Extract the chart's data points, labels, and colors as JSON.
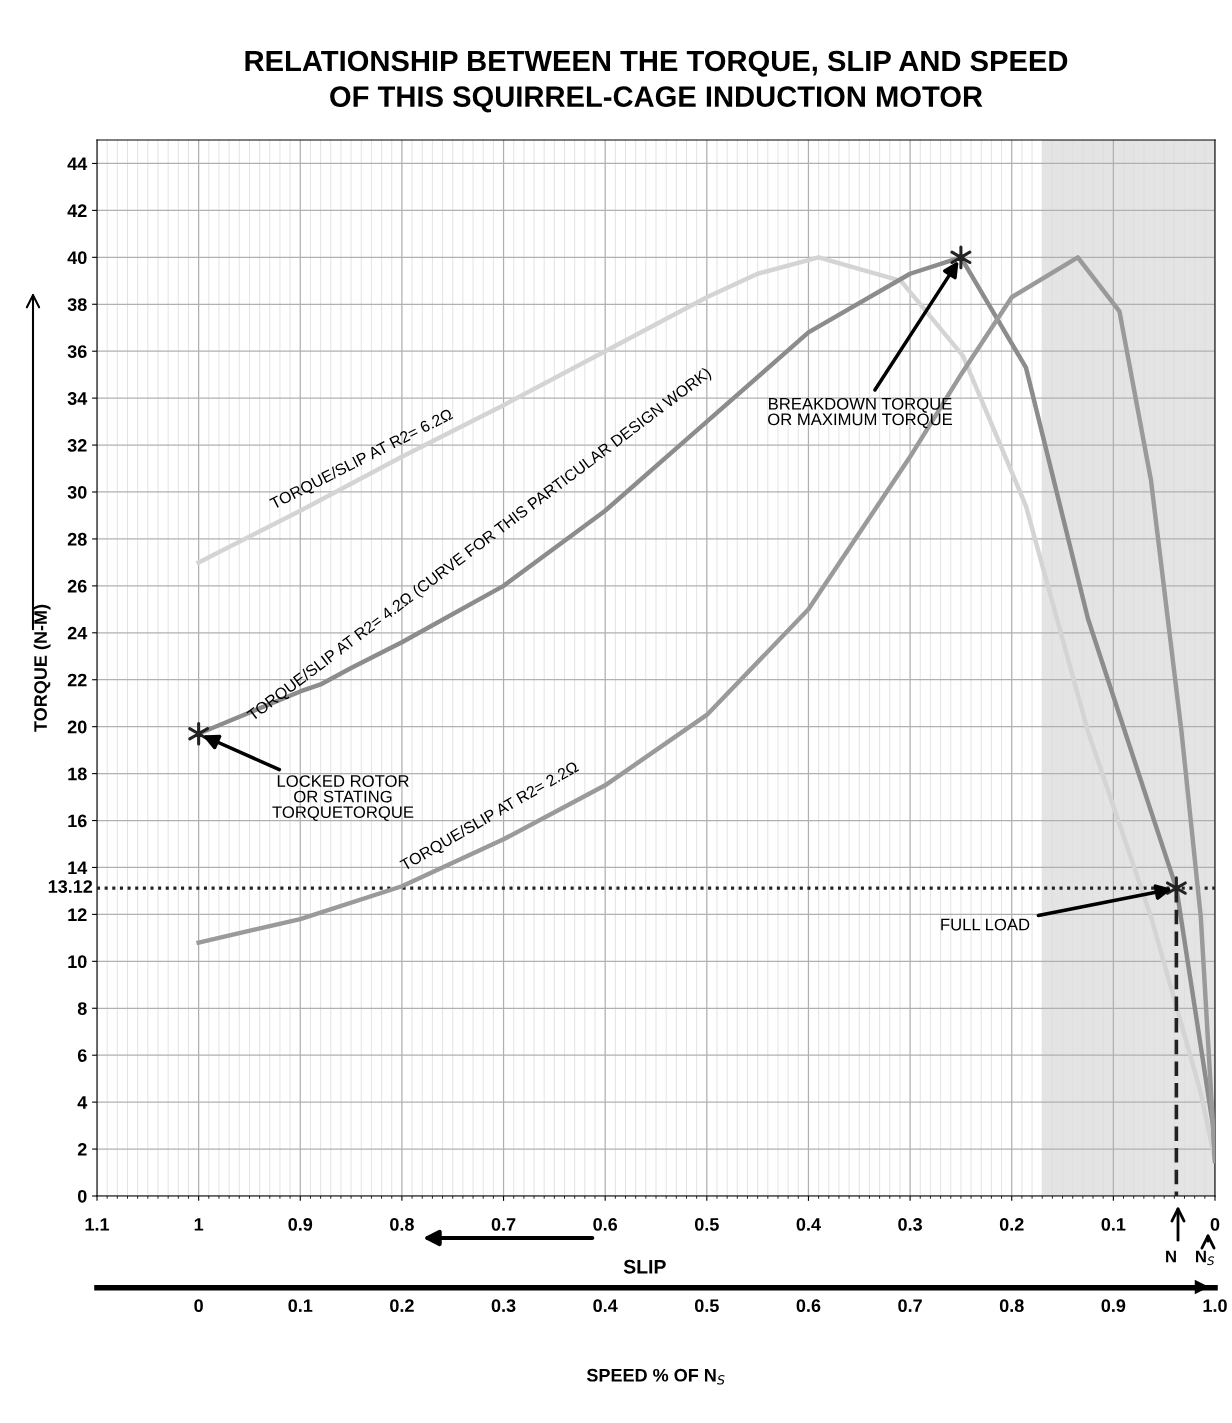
{
  "chart_data": {
    "type": "line",
    "title": "RELATIONSHIP BETWEEN THE TORQUE, SLIP AND SPEED\nOF THIS SQUIRREL-CAGE INDUCTION MOTOR",
    "xlabel": "SLIP",
    "ylabel": "TORQUE (N-M)",
    "x2label": "SPEED % OF N$_{S}$",
    "xlim": [
      1.1,
      0
    ],
    "xticks": [
      1.1,
      1,
      0.9,
      0.8,
      0.7,
      0.6,
      0.5,
      0.4,
      0.3,
      0.2,
      0.1,
      0
    ],
    "ylim": [
      0,
      45
    ],
    "yticks": [
      0,
      2,
      4,
      6,
      8,
      10,
      12,
      14,
      16,
      18,
      20,
      22,
      24,
      26,
      28,
      30,
      32,
      34,
      36,
      38,
      40,
      42,
      44
    ],
    "x2lim": [
      -0.1,
      1.0
    ],
    "x2ticks": [
      0,
      0.1,
      0.2,
      0.3,
      0.4,
      0.5,
      0.6,
      0.7,
      0.8,
      0.9,
      {
        "value": 1.0,
        "label": "1.0"
      }
    ],
    "grid": true,
    "series": [
      {
        "color": "#d4d4d4",
        "x": [
          1,
          0.9,
          0.8,
          0.7,
          0.6,
          0.5,
          0.45,
          0.39,
          0.309,
          0.248,
          0.186,
          0.125,
          0.063,
          0.014,
          0
        ],
        "values": [
          27,
          29.2,
          31.5,
          33.7,
          36,
          38.3,
          39.3,
          40,
          39,
          35.8,
          29.4,
          19.8,
          11.9,
          4.4,
          1.5
        ]
      },
      {
        "color": "#8c8c8c",
        "x": [
          1,
          0.9,
          0.88,
          0.85,
          0.8,
          0.7,
          0.6,
          0.5,
          0.4,
          0.3,
          0.25,
          0.186,
          0.125,
          0.063,
          0.038,
          0.002,
          0
        ],
        "values": [
          19.7,
          21.5,
          21.8,
          22.5,
          23.6,
          26,
          29.2,
          33,
          36.8,
          39.3,
          40,
          35.3,
          24.6,
          16.4,
          13.12,
          3,
          1.5
        ]
      },
      {
        "color": "#9a9a9a",
        "x": [
          1,
          0.9,
          0.8,
          0.7,
          0.6,
          0.5,
          0.4,
          0.3,
          0.25,
          0.2,
          0.135,
          0.094,
          0.063,
          0.033,
          0.014,
          0
        ],
        "values": [
          10.8,
          11.8,
          13.2,
          15.2,
          17.5,
          20.5,
          25,
          31.5,
          35,
          38.3,
          40,
          37.7,
          30.5,
          19.8,
          11.9,
          1.5
        ]
      },
      {
        "type": "line",
        "color": "#222222",
        "line_style": "dashed",
        "x": [
          0.038,
          0.038
        ],
        "values": [
          13.12,
          0
        ]
      },
      {
        "type": "scatter",
        "marker": "cross",
        "color": "#222222",
        "x": [
          1,
          0.25,
          0.038
        ],
        "values": [
          19.7,
          40,
          13.12
        ]
      }
    ],
    "ref_lines": [
      {
        "axis": "y",
        "value": 13.12,
        "label": "13.12",
        "color": "#222222",
        "line_style": "dotted"
      }
    ],
    "bands": [
      {
        "axis": "x",
        "from": 0.17,
        "to": 0,
        "color": "#d9d9d9"
      }
    ],
    "annotations": [
      "TORQUE/SLIP AT R2= 6.2Ω",
      "TORQUE/SLIP AT R2= 4.2Ω (CURVE FOR THIS PARTICULAR DESIGN WORK)",
      "TORQUE/SLIP AT R2= 2.2Ω",
      {
        "text": "LOCKED ROTOR\nOR STATING\nTORQUETORQUE",
        "x": 1,
        "y": 19.7
      },
      {
        "text": "BREAKDOWN TORQUE\nOR MAXIMUM TORQUE",
        "x": 0.25,
        "y": 40
      },
      {
        "text": "FULL LOAD",
        "x": 0.038,
        "y": 13.12
      },
      "N",
      "N$_{S}$"
    ]
  }
}
